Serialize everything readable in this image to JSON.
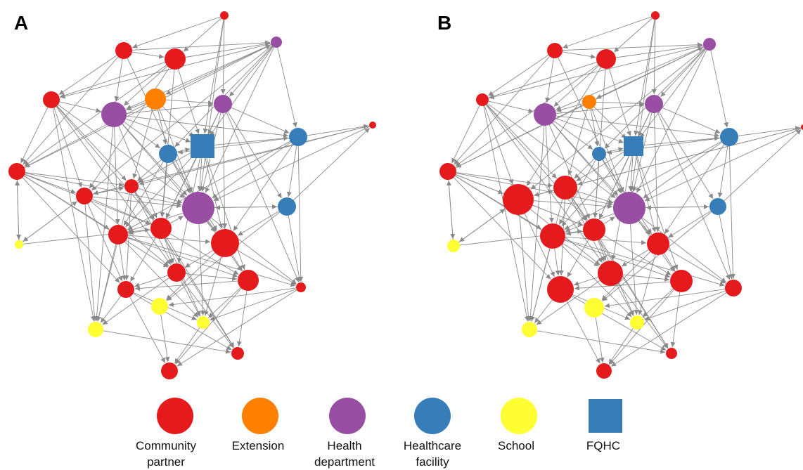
{
  "panels": [
    {
      "label": "A"
    },
    {
      "label": "B"
    }
  ],
  "legend": [
    {
      "key": "community_partner",
      "label_lines": [
        "Community",
        "partner"
      ],
      "color": "#e41a1c",
      "shape": "circle"
    },
    {
      "key": "extension",
      "label_lines": [
        "Extension"
      ],
      "color": "#ff7f00",
      "shape": "circle"
    },
    {
      "key": "health_department",
      "label_lines": [
        "Health",
        "department"
      ],
      "color": "#984ea3",
      "shape": "circle"
    },
    {
      "key": "healthcare_facility",
      "label_lines": [
        "Healthcare",
        "facility"
      ],
      "color": "#377eb8",
      "shape": "circle"
    },
    {
      "key": "school",
      "label_lines": [
        "School"
      ],
      "color": "#ffff33",
      "shape": "circle"
    },
    {
      "key": "fqhc",
      "label_lines": [
        "FQHC"
      ],
      "color": "#377eb8",
      "shape": "square"
    }
  ],
  "network": {
    "node_types": [
      "community_partner",
      "community_partner",
      "community_partner",
      "health_department",
      "community_partner",
      "extension",
      "health_department",
      "health_department",
      "community_partner",
      "healthcare_facility",
      "fqhc",
      "healthcare_facility",
      "community_partner",
      "community_partner",
      "community_partner",
      "health_department",
      "healthcare_facility",
      "school",
      "community_partner",
      "community_partner",
      "community_partner",
      "community_partner",
      "community_partner",
      "community_partner",
      "community_partner",
      "school",
      "school",
      "school",
      "community_partner",
      "community_partner"
    ],
    "edges": [
      [
        0,
        2
      ],
      [
        0,
        15
      ],
      [
        0,
        10
      ],
      [
        1,
        2
      ],
      [
        1,
        4
      ],
      [
        1,
        6
      ],
      [
        1,
        3
      ],
      [
        1,
        15
      ],
      [
        2,
        3
      ],
      [
        2,
        4
      ],
      [
        2,
        8
      ],
      [
        2,
        6
      ],
      [
        2,
        10
      ],
      [
        3,
        4
      ],
      [
        3,
        5
      ],
      [
        3,
        6
      ],
      [
        3,
        7
      ],
      [
        3,
        9
      ],
      [
        3,
        10
      ],
      [
        3,
        11
      ],
      [
        3,
        15
      ],
      [
        4,
        6
      ],
      [
        4,
        8
      ],
      [
        4,
        12
      ],
      [
        4,
        13
      ],
      [
        4,
        15
      ],
      [
        4,
        20
      ],
      [
        5,
        6
      ],
      [
        5,
        8
      ],
      [
        5,
        9
      ],
      [
        5,
        10
      ],
      [
        5,
        13
      ],
      [
        6,
        7
      ],
      [
        6,
        9
      ],
      [
        6,
        10
      ],
      [
        6,
        11
      ],
      [
        6,
        14
      ],
      [
        6,
        15
      ],
      [
        6,
        18
      ],
      [
        7,
        10
      ],
      [
        7,
        11
      ],
      [
        7,
        16
      ],
      [
        7,
        14
      ],
      [
        7,
        15
      ],
      [
        7,
        19
      ],
      [
        8,
        3
      ],
      [
        8,
        12
      ],
      [
        8,
        13
      ],
      [
        8,
        14
      ],
      [
        8,
        15
      ],
      [
        8,
        17
      ],
      [
        8,
        18
      ],
      [
        8,
        20
      ],
      [
        9,
        10
      ],
      [
        9,
        14
      ],
      [
        9,
        15
      ],
      [
        9,
        18
      ],
      [
        9,
        19
      ],
      [
        10,
        11
      ],
      [
        10,
        13
      ],
      [
        10,
        14
      ],
      [
        10,
        15
      ],
      [
        10,
        18
      ],
      [
        10,
        19
      ],
      [
        10,
        21
      ],
      [
        11,
        15
      ],
      [
        11,
        16
      ],
      [
        11,
        18
      ],
      [
        11,
        19
      ],
      [
        11,
        23
      ],
      [
        12,
        13
      ],
      [
        12,
        15
      ],
      [
        12,
        14
      ],
      [
        12,
        17
      ],
      [
        12,
        20
      ],
      [
        12,
        25
      ],
      [
        13,
        14
      ],
      [
        13,
        15
      ],
      [
        13,
        20
      ],
      [
        13,
        22
      ],
      [
        14,
        15
      ],
      [
        14,
        18
      ],
      [
        14,
        20
      ],
      [
        14,
        21
      ],
      [
        14,
        22
      ],
      [
        15,
        16
      ],
      [
        15,
        18
      ],
      [
        15,
        19
      ],
      [
        15,
        21
      ],
      [
        15,
        26
      ],
      [
        16,
        19
      ],
      [
        16,
        23
      ],
      [
        16,
        27
      ],
      [
        17,
        12
      ],
      [
        17,
        14
      ],
      [
        18,
        19
      ],
      [
        18,
        21
      ],
      [
        18,
        22
      ],
      [
        18,
        25
      ],
      [
        18,
        26
      ],
      [
        19,
        20
      ],
      [
        19,
        21
      ],
      [
        19,
        23
      ],
      [
        19,
        27
      ],
      [
        20,
        21
      ],
      [
        20,
        22
      ],
      [
        20,
        25
      ],
      [
        20,
        28
      ],
      [
        21,
        22
      ],
      [
        21,
        26
      ],
      [
        21,
        28
      ],
      [
        22,
        25
      ],
      [
        22,
        26
      ],
      [
        22,
        28
      ],
      [
        23,
        27
      ],
      [
        23,
        29
      ],
      [
        23,
        26
      ],
      [
        24,
        12
      ],
      [
        24,
        13
      ],
      [
        24,
        15
      ],
      [
        25,
        28
      ],
      [
        26,
        29
      ],
      [
        27,
        29
      ],
      [
        2,
        12
      ],
      [
        4,
        25
      ],
      [
        6,
        25
      ],
      [
        13,
        25
      ],
      [
        14,
        28
      ],
      [
        21,
        29
      ],
      [
        7,
        23
      ],
      [
        16,
        24
      ],
      [
        11,
        24
      ],
      [
        0,
        1
      ],
      [
        5,
        15
      ],
      [
        9,
        13
      ],
      [
        3,
        12
      ],
      [
        19,
        26
      ],
      [
        10,
        20
      ],
      [
        8,
        22
      ],
      [
        6,
        19
      ],
      [
        15,
        23
      ],
      [
        11,
        9
      ],
      [
        2,
        14
      ],
      [
        13,
        28
      ],
      [
        20,
        26
      ],
      [
        22,
        29
      ],
      [
        18,
        23
      ],
      [
        12,
        22
      ],
      [
        1,
        8
      ],
      [
        16,
        15
      ],
      [
        5,
        7
      ],
      [
        14,
        26
      ],
      [
        0,
        7
      ],
      [
        17,
        8
      ],
      [
        4,
        14
      ]
    ]
  }
}
